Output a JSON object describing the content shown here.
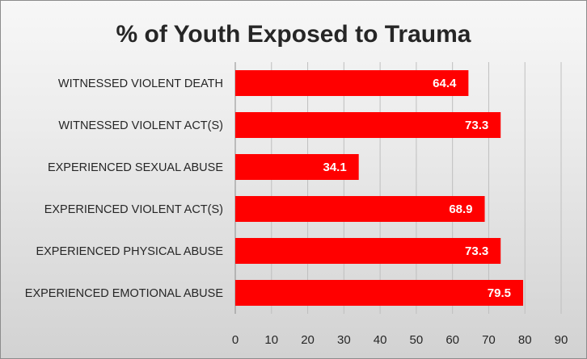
{
  "chart_data": {
    "type": "bar",
    "orientation": "horizontal",
    "title": "% of Youth Exposed to Trauma",
    "categories": [
      "WITNESSED VIOLENT DEATH",
      "WITNESSED VIOLENT ACT(S)",
      "EXPERIENCED SEXUAL ABUSE",
      "EXPERIENCED VIOLENT ACT(S)",
      "EXPERIENCED PHYSICAL ABUSE",
      "EXPERIENCED EMOTIONAL ABUSE"
    ],
    "values": [
      64.4,
      73.3,
      34.1,
      68.9,
      73.3,
      79.5
    ],
    "data_labels": [
      "64.4",
      "73.3",
      "34.1",
      "68.9",
      "73.3",
      "79.5"
    ],
    "xlim": [
      0,
      90
    ],
    "x_ticks": [
      0,
      10,
      20,
      30,
      40,
      50,
      60,
      70,
      80,
      90
    ],
    "x_tick_labels": [
      "0",
      "10",
      "20",
      "30",
      "40",
      "50",
      "60",
      "70",
      "80",
      "90"
    ],
    "xlabel": "",
    "ylabel": "",
    "grid": true,
    "legend": "none",
    "bar_color": "#ff0000",
    "grid_color": "#bfbfbf"
  }
}
